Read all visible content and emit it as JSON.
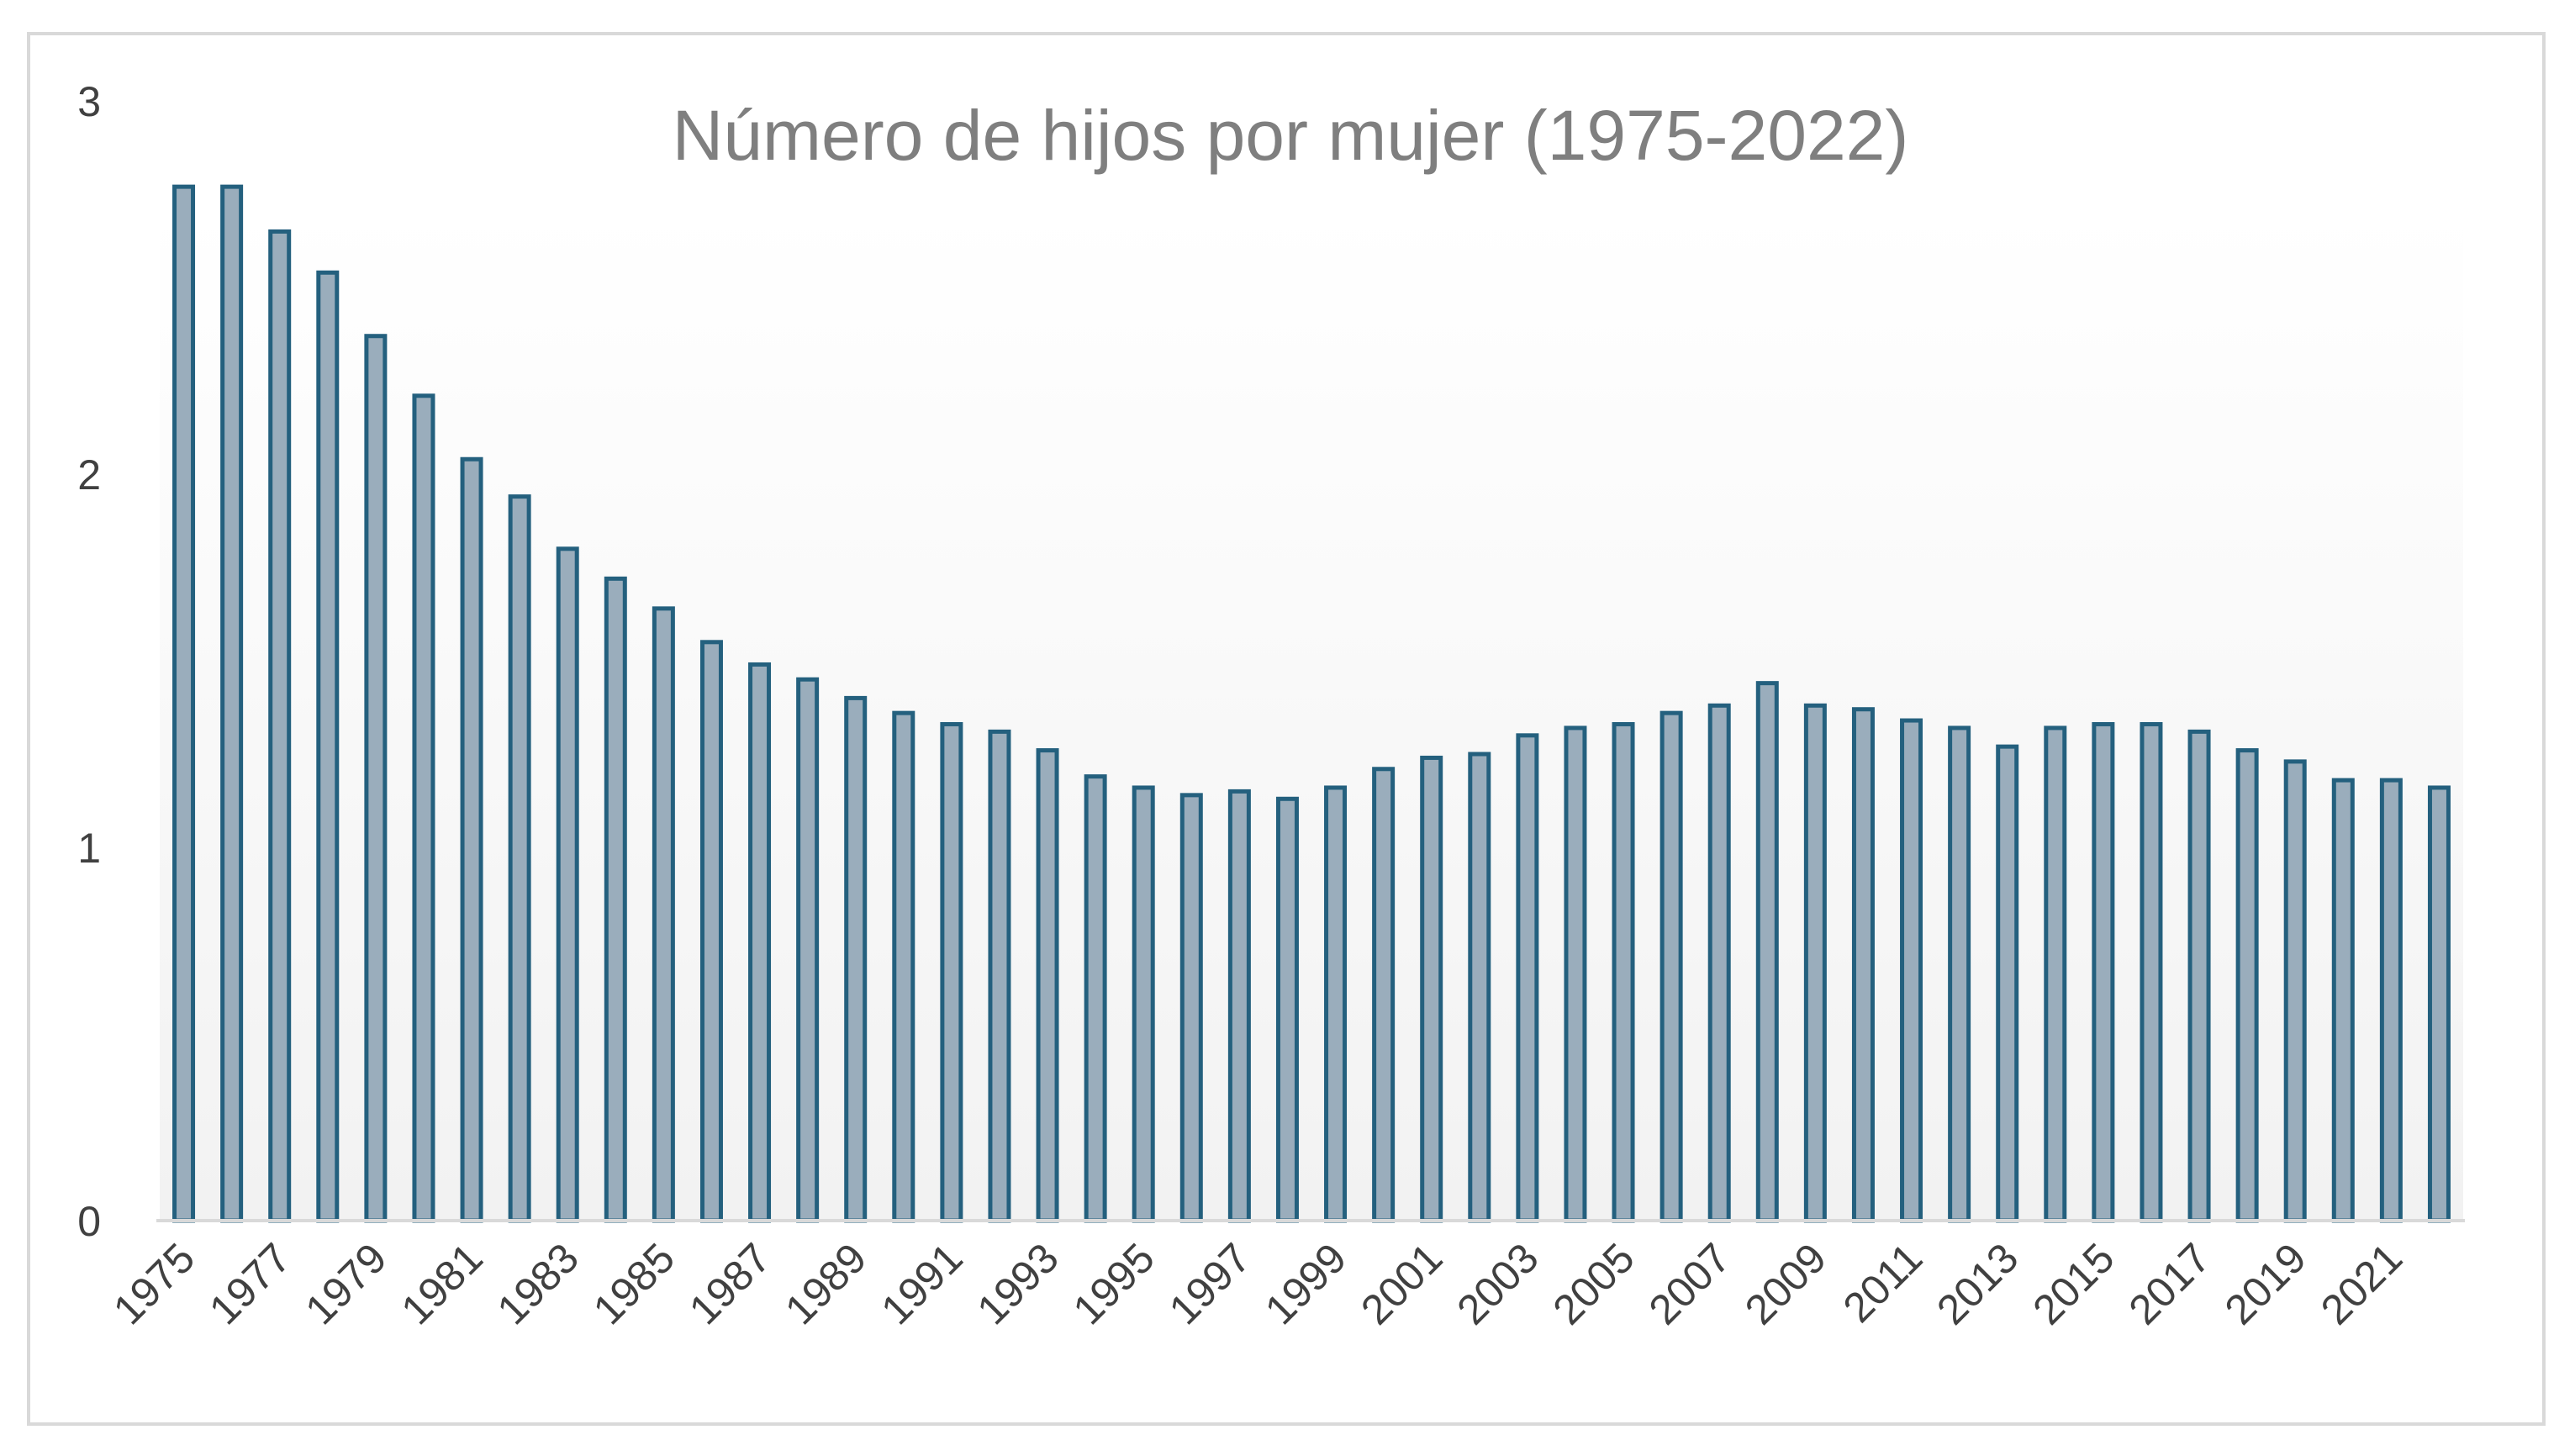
{
  "chart_data": {
    "type": "bar",
    "title": "Número de hijos por mujer (1975-2022)",
    "xlabel": "",
    "ylabel": "",
    "ylim": [
      0,
      3
    ],
    "yticks": [
      "0",
      "1",
      "2",
      "3"
    ],
    "grid": false,
    "legend": "none",
    "colors": {
      "bar_fill": "#9aadbc",
      "bar_edge": "#24607e",
      "title": "#7f7f7f",
      "tick_text": "#404040",
      "axis": "#d9d9d9",
      "plot_bg_top": "#ffffff",
      "plot_bg_bottom": "#f2f2f2"
    },
    "categories": [
      "1975",
      "1976",
      "1977",
      "1978",
      "1979",
      "1980",
      "1981",
      "1982",
      "1983",
      "1984",
      "1985",
      "1986",
      "1987",
      "1988",
      "1989",
      "1990",
      "1991",
      "1992",
      "1993",
      "1994",
      "1995",
      "1996",
      "1997",
      "1998",
      "1999",
      "2000",
      "2001",
      "2002",
      "2003",
      "2004",
      "2005",
      "2006",
      "2007",
      "2008",
      "2009",
      "2010",
      "2011",
      "2012",
      "2013",
      "2014",
      "2015",
      "2016",
      "2017",
      "2018",
      "2019",
      "2020",
      "2021",
      "2022"
    ],
    "tick_labels": [
      "1975",
      "1977",
      "1979",
      "1981",
      "1983",
      "1985",
      "1987",
      "1989",
      "1991",
      "1993",
      "1995",
      "1997",
      "1999",
      "2001",
      "2003",
      "2005",
      "2007",
      "2009",
      "2011",
      "2013",
      "2015",
      "2017",
      "2019",
      "2021"
    ],
    "values": [
      2.77,
      2.77,
      2.65,
      2.54,
      2.37,
      2.21,
      2.04,
      1.94,
      1.8,
      1.72,
      1.64,
      1.55,
      1.49,
      1.45,
      1.4,
      1.36,
      1.33,
      1.31,
      1.26,
      1.19,
      1.16,
      1.14,
      1.15,
      1.13,
      1.16,
      1.21,
      1.24,
      1.25,
      1.3,
      1.32,
      1.33,
      1.36,
      1.38,
      1.44,
      1.38,
      1.37,
      1.34,
      1.32,
      1.27,
      1.32,
      1.33,
      1.33,
      1.31,
      1.26,
      1.23,
      1.18,
      1.18,
      1.16
    ]
  }
}
